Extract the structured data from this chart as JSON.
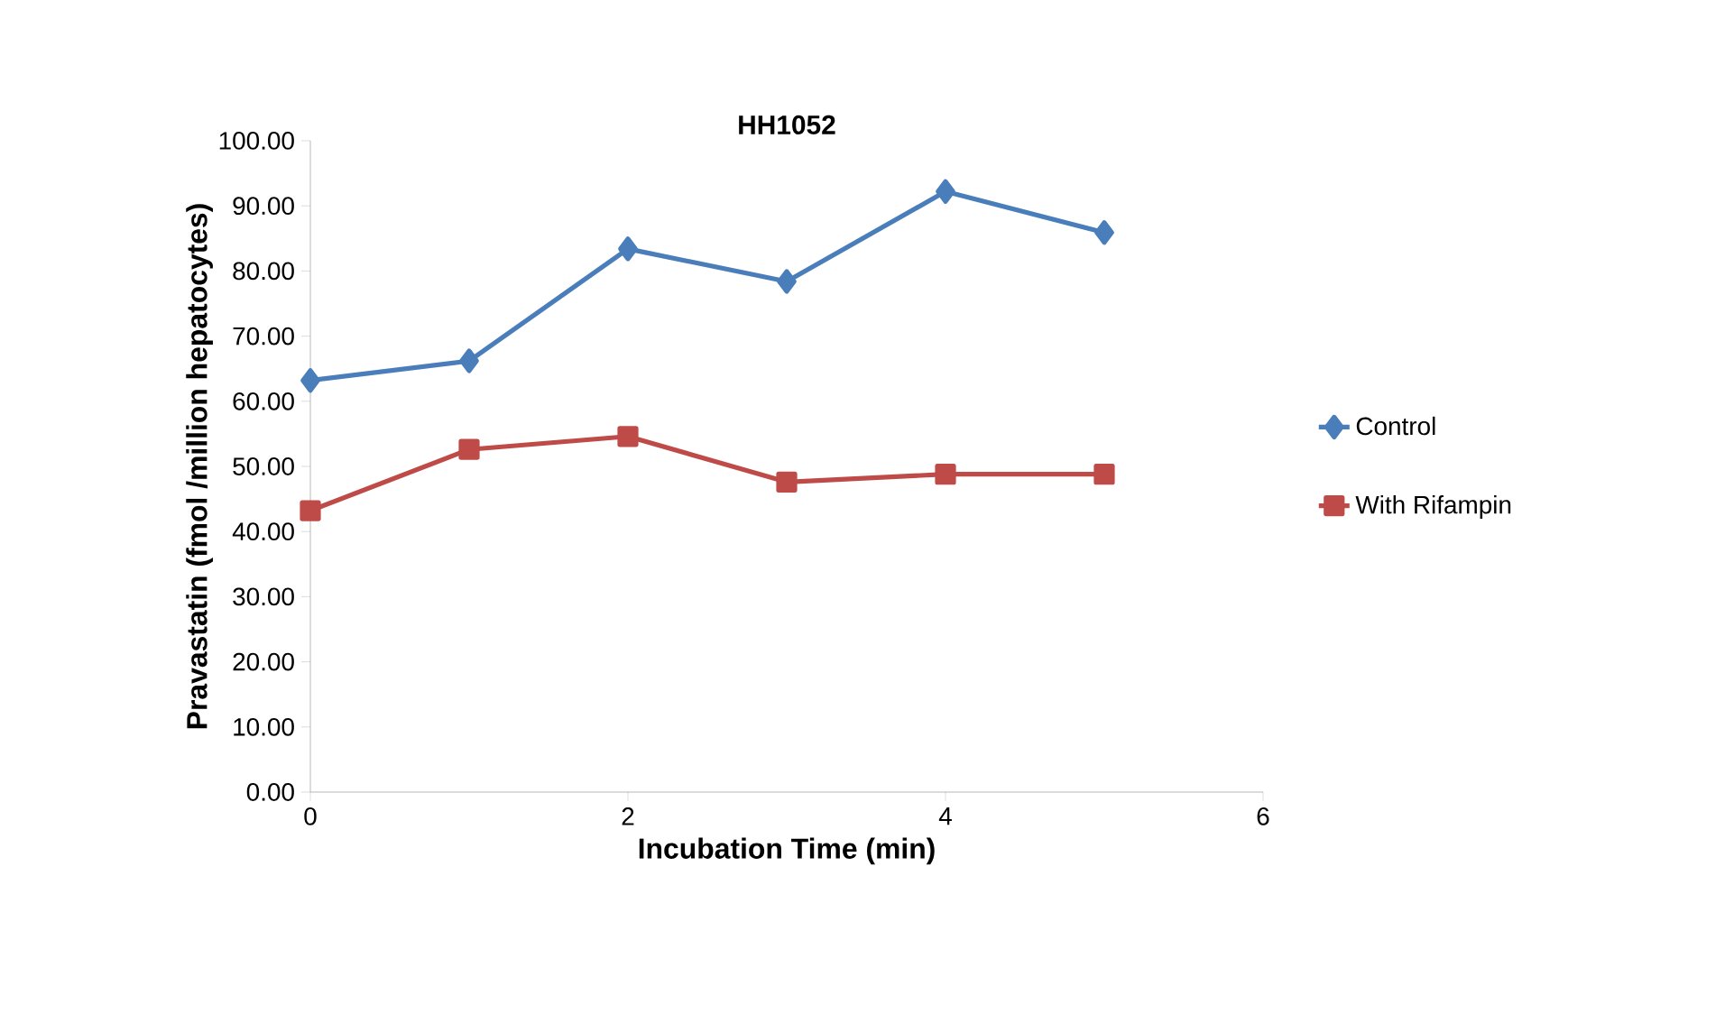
{
  "chart_data": {
    "type": "line",
    "title": "HH1052",
    "xlabel": "Incubation Time (min)",
    "ylabel": "Pravastatin (fmol /million hepatocytes)",
    "x": [
      0,
      1,
      2,
      3,
      4,
      5
    ],
    "series": [
      {
        "name": "Control",
        "color": "#4a7ebb",
        "marker": "diamond",
        "values": [
          63.2,
          66.2,
          83.4,
          78.4,
          92.2,
          85.9
        ]
      },
      {
        "name": "With Rifampin",
        "color": "#be4b48",
        "marker": "square",
        "values": [
          43.2,
          52.6,
          54.6,
          47.6,
          48.8,
          48.8
        ]
      }
    ],
    "xlim": [
      0,
      6
    ],
    "xticks": [
      0,
      2,
      4,
      6
    ],
    "ylim": [
      0,
      100
    ],
    "yticks": [
      {
        "value": 0,
        "label": "0.00"
      },
      {
        "value": 10,
        "label": "10.00"
      },
      {
        "value": 20,
        "label": "20.00"
      },
      {
        "value": 30,
        "label": "30.00"
      },
      {
        "value": 40,
        "label": "40.00"
      },
      {
        "value": 50,
        "label": "50.00"
      },
      {
        "value": 60,
        "label": "60.00"
      },
      {
        "value": 70,
        "label": "70.00"
      },
      {
        "value": 80,
        "label": "80.00"
      },
      {
        "value": 90,
        "label": "90.00"
      },
      {
        "value": 100,
        "label": "100.00"
      }
    ],
    "grid": false,
    "legend": "right",
    "line_style": "solid"
  }
}
